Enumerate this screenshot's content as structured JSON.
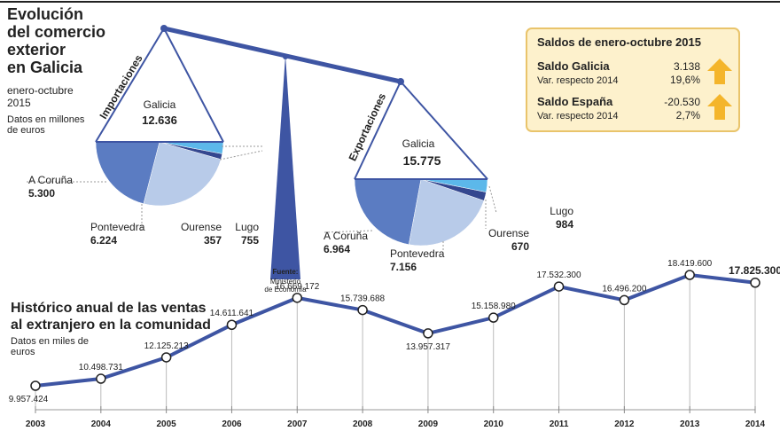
{
  "header": {
    "title_lines": [
      "Evolución",
      "del comercio",
      "exterior",
      "en Galicia"
    ],
    "subtitle_lines": [
      "enero-octubre",
      "2015"
    ],
    "note_lines": [
      "Datos en millones",
      "de euros"
    ]
  },
  "source": {
    "label": "Fuente:",
    "lines": [
      "Ministerio",
      "de Economía"
    ]
  },
  "saldos": {
    "title": "Saldos de enero-octubre 2015",
    "rows": [
      {
        "label": "Saldo Galicia",
        "value": "3.138",
        "sublabel": "Var. respecto 2014",
        "change": "19,6%"
      },
      {
        "label": "Saldo España",
        "value": "-20.530",
        "sublabel": "Var. respecto 2014",
        "change": "2,7%"
      }
    ]
  },
  "chart_data": [
    {
      "type": "pie",
      "title": "Importaciones",
      "center_label": "Galicia",
      "total": {
        "value": 12636,
        "label": "12.636"
      },
      "categories": [
        "A Coruña",
        "Pontevedra",
        "Ourense",
        "Lugo"
      ],
      "values": [
        5300,
        6224,
        357,
        755
      ],
      "value_labels": [
        "5.300",
        "6.224",
        "357",
        "755"
      ],
      "colors": [
        "#5b7cc2",
        "#b8cbe9",
        "#34478f",
        "#5cb8ea"
      ]
    },
    {
      "type": "pie",
      "title": "Exportaciones",
      "center_label": "Galicia",
      "total": {
        "value": 15775,
        "label": "15.775"
      },
      "categories": [
        "A Coruña",
        "Pontevedra",
        "Ourense",
        "Lugo"
      ],
      "values": [
        6964,
        7156,
        670,
        984
      ],
      "value_labels": [
        "6.964",
        "7.156",
        "670",
        "984"
      ],
      "colors": [
        "#5b7cc2",
        "#b8cbe9",
        "#34478f",
        "#5cb8ea"
      ]
    },
    {
      "type": "line",
      "title_lines": [
        "Histórico anual de las ventas",
        "al extranjero en la comunidad"
      ],
      "subtitle_lines": [
        "Datos en miles de",
        "euros"
      ],
      "categories": [
        "2003",
        "2004",
        "2005",
        "2006",
        "2007",
        "2008",
        "2009",
        "2010",
        "2011",
        "2012",
        "2013",
        "2014"
      ],
      "values": [
        9957424,
        10498731,
        12125213,
        14611641,
        16669172,
        15739688,
        13957317,
        15158980,
        17532300,
        16496200,
        18419600,
        17825300
      ],
      "value_labels": [
        "9.957.424",
        "10.498.731",
        "12.125.213",
        "14.611.641",
        "16.669.172",
        "15.739.688",
        "13.957.317",
        "15.158.980",
        "17.532.300",
        "16.496.200",
        "18.419.600",
        "17.825.300"
      ],
      "color": "#3e55a3"
    }
  ]
}
